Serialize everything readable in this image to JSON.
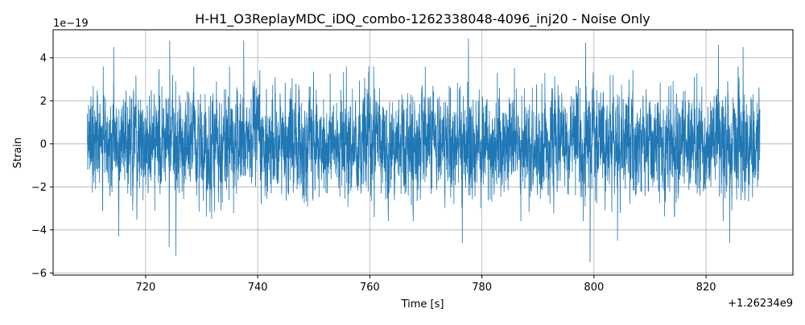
{
  "chart_data": {
    "type": "line",
    "title": "H-H1_O3ReplayMDC_iDQ_combo-1262338048-4096_inj20 - Noise Only",
    "xlabel": "Time [s]",
    "ylabel": "Strain",
    "x_offset_label": "+1.26234e9",
    "y_scale_label": "1e−19",
    "xlim": [
      703.5,
      835.5
    ],
    "ylim": [
      -6.1,
      5.3
    ],
    "x_ticks": [
      720,
      740,
      760,
      780,
      800,
      820
    ],
    "x_tick_labels": [
      "720",
      "740",
      "760",
      "780",
      "800",
      "820"
    ],
    "y_ticks": [
      -6,
      -4,
      -2,
      0,
      2,
      4
    ],
    "y_tick_labels": [
      "−6",
      "−4",
      "−2",
      "0",
      "2",
      "4"
    ],
    "grid": true,
    "line_color": "#1f77b4",
    "series": [
      {
        "x_range": [
          709.6,
          829.6
        ],
        "noise_sigma": 1.0,
        "peaks": [
          {
            "x": 714.3,
            "y": 4.5
          },
          {
            "x": 724.3,
            "y": 4.8
          },
          {
            "x": 725.4,
            "y": -5.2
          },
          {
            "x": 737.5,
            "y": 4.8
          },
          {
            "x": 724.2,
            "y": -4.8
          },
          {
            "x": 777.6,
            "y": 4.9
          },
          {
            "x": 776.5,
            "y": -4.6
          },
          {
            "x": 798.5,
            "y": 4.7
          },
          {
            "x": 799.3,
            "y": -5.5
          },
          {
            "x": 822.2,
            "y": 4.6
          },
          {
            "x": 824.2,
            "y": -4.6
          },
          {
            "x": 826.6,
            "y": 4.5
          },
          {
            "x": 804.2,
            "y": -4.5
          },
          {
            "x": 715.2,
            "y": -4.3
          }
        ]
      }
    ]
  }
}
